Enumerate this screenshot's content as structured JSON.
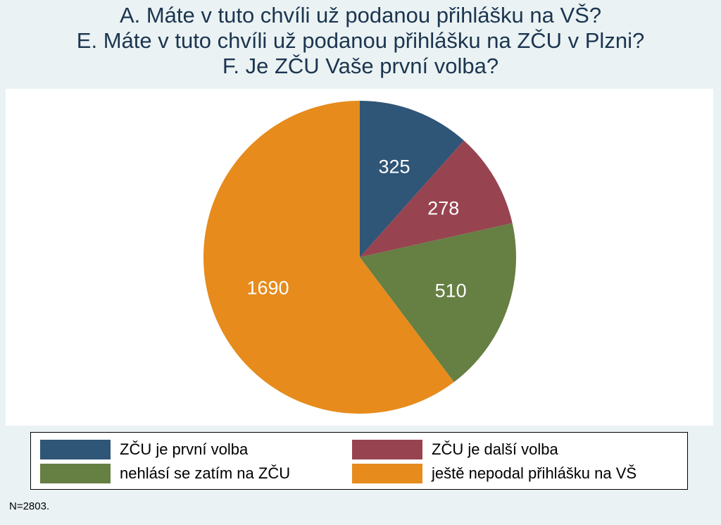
{
  "title_lines": [
    "A. Máte v tuto chvíli už podanou přihlášku na VŠ?",
    "E. Máte v tuto chvíli už podanou přihlášku na ZČU v Plzni?",
    "F. Je ZČU Vaše první volba?"
  ],
  "chart_data": {
    "type": "pie",
    "title": "A. Máte v tuto chvíli už podanou přihlášku na VŠ? E. Máte v tuto chvíli už podanou přihlášku na ZČU v Plzni? F. Je ZČU Vaše první volba?",
    "categories": [
      "ZČU je první volba",
      "ZČU je další volba",
      "nehlásí se zatím na ZČU",
      "ještě nepodal přihlášku na VŠ"
    ],
    "values": [
      325,
      278,
      510,
      1690
    ],
    "data_labels": [
      "325",
      "278",
      "510",
      "1690"
    ],
    "colors": [
      "#2f5577",
      "#974450",
      "#667f43",
      "#e68b1c"
    ],
    "legend_position": "bottom",
    "start": "12 o'clock",
    "direction": "clockwise"
  },
  "footnote": "N=2803."
}
